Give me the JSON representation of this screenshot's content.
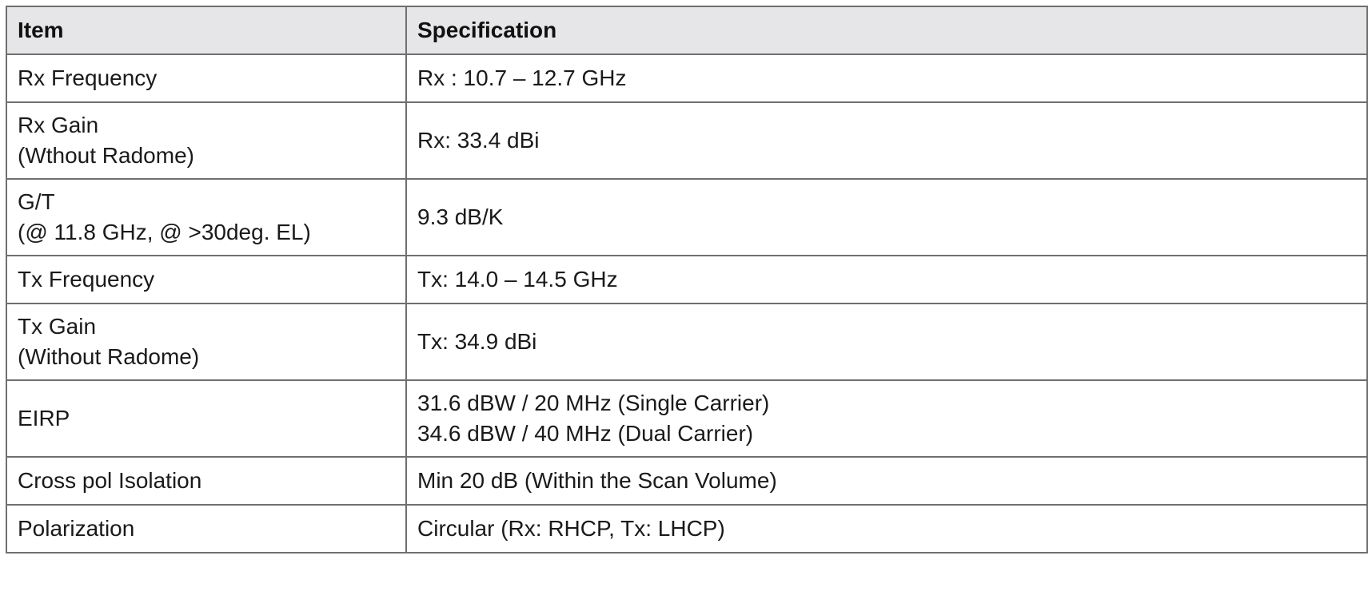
{
  "table": {
    "headers": [
      "Item",
      "Specification"
    ],
    "rows": [
      {
        "item": [
          "Rx Frequency"
        ],
        "spec": [
          "Rx : 10.7 – 12.7 GHz"
        ]
      },
      {
        "item": [
          "Rx Gain",
          "(Wthout Radome)"
        ],
        "spec": [
          "Rx: 33.4 dBi"
        ]
      },
      {
        "item": [
          "G/T",
          "(@ 11.8 GHz, @ >30deg. EL)"
        ],
        "spec": [
          "9.3 dB/K"
        ]
      },
      {
        "item": [
          "Tx Frequency"
        ],
        "spec": [
          "Tx: 14.0 – 14.5 GHz"
        ]
      },
      {
        "item": [
          "Tx Gain",
          "(Without Radome)"
        ],
        "spec": [
          "Tx: 34.9 dBi"
        ]
      },
      {
        "item": [
          "EIRP"
        ],
        "spec": [
          "31.6 dBW / 20 MHz (Single Carrier)",
          "34.6 dBW / 40 MHz (Dual Carrier)"
        ]
      },
      {
        "item": [
          "Cross pol Isolation"
        ],
        "spec": [
          "Min 20 dB (Within the Scan Volume)"
        ]
      },
      {
        "item": [
          "Polarization"
        ],
        "spec": [
          "Circular (Rx: RHCP, Tx: LHCP)"
        ]
      }
    ]
  }
}
